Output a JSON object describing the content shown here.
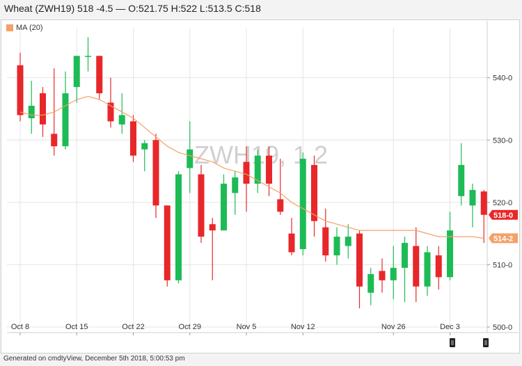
{
  "header": {
    "title": "Wheat (ZWH19) 518 -4.5 — O:521.75 H:522 L:513.5 C:518"
  },
  "legend": {
    "label": "MA (20)"
  },
  "watermark": "ZWH19, 1 2",
  "footer": {
    "text": "Generated on cmdtyView, December 5th 2018, 5:00:53 pm"
  },
  "price_tags": [
    {
      "label": "518-0",
      "value": 518,
      "color": "#e8272a"
    },
    {
      "label": "514-2",
      "value": 514.25,
      "color": "#f4a067"
    }
  ],
  "colors": {
    "up": "#1dbb55",
    "down": "#e8272a",
    "ma": "#f4a067",
    "grid": "#e4e4e4"
  },
  "chart_data": {
    "type": "candlestick",
    "ylim": [
      500,
      548
    ],
    "y_ticks": [
      {
        "value": 540,
        "label": "540-0"
      },
      {
        "value": 530,
        "label": "530-0"
      },
      {
        "value": 520,
        "label": "520-0"
      },
      {
        "value": 510,
        "label": "510-0"
      },
      {
        "value": 500,
        "label": "500-0"
      }
    ],
    "x_ticks": [
      {
        "index": 0,
        "label": "Oct 8"
      },
      {
        "index": 5,
        "label": "Oct 15"
      },
      {
        "index": 10,
        "label": "Oct 22"
      },
      {
        "index": 15,
        "label": "Oct 29"
      },
      {
        "index": 20,
        "label": "Nov 5"
      },
      {
        "index": 25,
        "label": "Nov 12"
      },
      {
        "index": 33,
        "label": "Nov 26"
      },
      {
        "index": 38,
        "label": "Dec 3"
      }
    ],
    "candles": [
      {
        "o": 542,
        "h": 544,
        "l": 533,
        "c": 534
      },
      {
        "o": 533.5,
        "h": 539.5,
        "l": 531,
        "c": 535.5
      },
      {
        "o": 537.5,
        "h": 538.5,
        "l": 530.5,
        "c": 532.5
      },
      {
        "o": 531,
        "h": 541.5,
        "l": 527.5,
        "c": 529
      },
      {
        "o": 529,
        "h": 541,
        "l": 528.5,
        "c": 537.5
      },
      {
        "o": 538.5,
        "h": 543.5,
        "l": 536,
        "c": 543.5
      },
      {
        "o": 543.5,
        "h": 546.5,
        "l": 541,
        "c": 543.5
      },
      {
        "o": 543.5,
        "h": 543.5,
        "l": 536.5,
        "c": 537.5
      },
      {
        "o": 536,
        "h": 540,
        "l": 532,
        "c": 533
      },
      {
        "o": 532.5,
        "h": 537.5,
        "l": 531,
        "c": 534
      },
      {
        "o": 533,
        "h": 534,
        "l": 526.5,
        "c": 527.5
      },
      {
        "o": 528.5,
        "h": 530,
        "l": 525,
        "c": 529.5
      },
      {
        "o": 530,
        "h": 531,
        "l": 517.5,
        "c": 519.5
      },
      {
        "o": 519.5,
        "h": 519.5,
        "l": 506.5,
        "c": 507.5
      },
      {
        "o": 507.5,
        "h": 525,
        "l": 507,
        "c": 524.5
      },
      {
        "o": 525.5,
        "h": 533,
        "l": 521.5,
        "c": 528.5
      },
      {
        "o": 524.5,
        "h": 526,
        "l": 513.5,
        "c": 514.5
      },
      {
        "o": 516.5,
        "h": 517.5,
        "l": 507.5,
        "c": 515.5
      },
      {
        "o": 515.5,
        "h": 524.5,
        "l": 515.5,
        "c": 523
      },
      {
        "o": 521.5,
        "h": 525,
        "l": 518,
        "c": 524
      },
      {
        "o": 526.5,
        "h": 529,
        "l": 518.5,
        "c": 523
      },
      {
        "o": 523,
        "h": 528.5,
        "l": 521.5,
        "c": 527.5
      },
      {
        "o": 527.5,
        "h": 529,
        "l": 521,
        "c": 523
      },
      {
        "o": 520.5,
        "h": 527,
        "l": 518,
        "c": 518.5
      },
      {
        "o": 515,
        "h": 517.5,
        "l": 511.5,
        "c": 512
      },
      {
        "o": 512.5,
        "h": 528,
        "l": 511.5,
        "c": 527
      },
      {
        "o": 526,
        "h": 527.5,
        "l": 514.5,
        "c": 517
      },
      {
        "o": 516,
        "h": 519,
        "l": 510.5,
        "c": 511.5
      },
      {
        "o": 511.5,
        "h": 516,
        "l": 510,
        "c": 514.5
      },
      {
        "o": 513,
        "h": 516.5,
        "l": 511,
        "c": 514.5
      },
      {
        "o": 515,
        "h": 515.5,
        "l": 503,
        "c": 506.5
      },
      {
        "o": 505.5,
        "h": 509.5,
        "l": 503.5,
        "c": 508.5
      },
      {
        "o": 509,
        "h": 511,
        "l": 505.5,
        "c": 507.5
      },
      {
        "o": 507.5,
        "h": 513,
        "l": 504.5,
        "c": 509.5
      },
      {
        "o": 509.5,
        "h": 514.5,
        "l": 504,
        "c": 513.5
      },
      {
        "o": 513,
        "h": 516,
        "l": 504,
        "c": 506.5
      },
      {
        "o": 506.5,
        "h": 513,
        "l": 505,
        "c": 512
      },
      {
        "o": 511.5,
        "h": 513,
        "l": 506,
        "c": 508
      },
      {
        "o": 508,
        "h": 518.5,
        "l": 507.5,
        "c": 515.5
      },
      {
        "o": 521,
        "h": 529.5,
        "l": 519.5,
        "c": 526
      },
      {
        "o": 519.5,
        "h": 523,
        "l": 516,
        "c": 522
      },
      {
        "o": 521.75,
        "h": 522,
        "l": 513.5,
        "c": 518
      }
    ],
    "ma": {
      "name": "MA (20)",
      "values": [
        534.5,
        534,
        534,
        534.5,
        535.5,
        536.5,
        537,
        536.5,
        535.5,
        534.5,
        533.5,
        532,
        530.5,
        529,
        528,
        527.5,
        527,
        526.5,
        525.5,
        525,
        524.5,
        523.5,
        522.5,
        521.5,
        520,
        519,
        518,
        517,
        516.5,
        516,
        515.5,
        515.5,
        515.5,
        515.5,
        515.5,
        515.5,
        515,
        514.5,
        514.5,
        514.5,
        514.5,
        514.25
      ]
    }
  }
}
